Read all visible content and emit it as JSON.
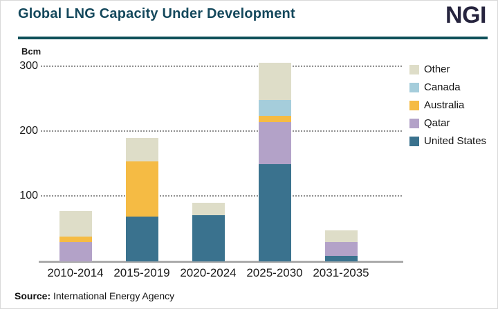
{
  "header": {
    "title": "Global LNG Capacity Under Development",
    "logo_text": "NGI"
  },
  "axis": {
    "unit_label": "Bcm"
  },
  "footer": {
    "source_label": "Source:",
    "source_text": "International Energy Agency"
  },
  "colors": {
    "title": "#14485c",
    "logo": "#26243e",
    "divider": "#0e5059",
    "gridline": "#8f8f8f",
    "axis_line": "#ababab"
  },
  "chart_data": {
    "type": "bar",
    "subtype": "stacked-vertical",
    "title": "Global LNG Capacity Under Development",
    "xlabel": "",
    "ylabel": "Bcm",
    "ylim": [
      0,
      320
    ],
    "yticks": [
      100,
      200,
      300
    ],
    "grid": "horizontal-dotted",
    "legend_position": "right",
    "legend_order_top_to_bottom": [
      "Other",
      "Canada",
      "Australia",
      "Qatar",
      "United States"
    ],
    "categories": [
      "2010-2014",
      "2015-2019",
      "2020-2024",
      "2025-2030",
      "2031-2035"
    ],
    "series": [
      {
        "name": "United States",
        "color": "#3a728e",
        "values": [
          0,
          69,
          71,
          150,
          8
        ]
      },
      {
        "name": "Qatar",
        "color": "#b3a2c8",
        "values": [
          30,
          0,
          0,
          65,
          22
        ]
      },
      {
        "name": "Australia",
        "color": "#f5bb44",
        "values": [
          8,
          85,
          0,
          9,
          0
        ]
      },
      {
        "name": "Canada",
        "color": "#a5cddb",
        "values": [
          0,
          0,
          0,
          25,
          0
        ]
      },
      {
        "name": "Other",
        "color": "#deddc8",
        "values": [
          40,
          36,
          19,
          57,
          18
        ]
      }
    ],
    "totals": [
      78,
      190,
      90,
      306,
      48
    ]
  }
}
